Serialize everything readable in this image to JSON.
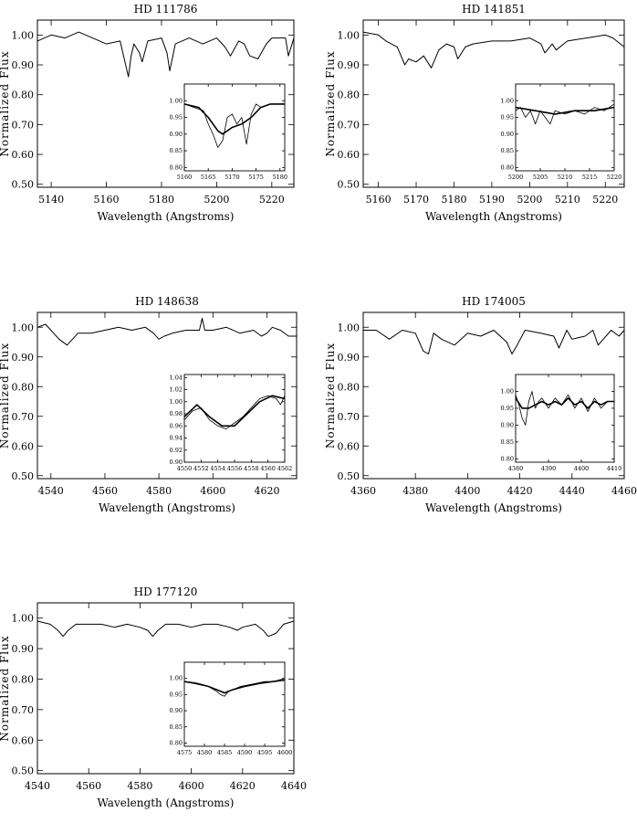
{
  "chart_data": [
    {
      "type": "line",
      "title": "HD 111786",
      "xlabel": "Wavelength (Angstroms)",
      "ylabel": "Normalized Flux",
      "xlim": [
        5135,
        5228
      ],
      "ylim": [
        0.49,
        1.05
      ],
      "xticks": [
        5140,
        5160,
        5180,
        5200,
        5220
      ],
      "yticks": [
        0.5,
        0.6,
        0.7,
        0.8,
        0.9,
        1.0
      ],
      "series": [
        {
          "x": [
            5135,
            5140,
            5145,
            5150,
            5155,
            5160,
            5165,
            5167,
            5168,
            5169,
            5170,
            5172,
            5173,
            5175,
            5180,
            5182,
            5183,
            5185,
            5190,
            5195,
            5200,
            5203,
            5205,
            5208,
            5210,
            5212,
            5215,
            5218,
            5220,
            5225,
            5226,
            5228
          ],
          "y": [
            0.98,
            1.0,
            0.99,
            1.01,
            0.99,
            0.97,
            0.98,
            0.9,
            0.86,
            0.93,
            0.97,
            0.94,
            0.91,
            0.98,
            0.99,
            0.94,
            0.88,
            0.97,
            0.99,
            0.97,
            0.99,
            0.96,
            0.93,
            0.98,
            0.97,
            0.93,
            0.92,
            0.97,
            0.99,
            0.99,
            0.93,
            0.99
          ]
        }
      ],
      "inset": {
        "xlim": [
          5160,
          5181
        ],
        "ylim": [
          0.79,
          1.05
        ],
        "xticks": [
          5160,
          5165,
          5170,
          5175,
          5180
        ],
        "yticks": [
          0.8,
          0.85,
          0.9,
          0.95,
          1.0
        ],
        "series": [
          {
            "x": [
              5160,
              5162,
              5164,
              5165,
              5166,
              5167,
              5168,
              5169,
              5170,
              5171,
              5172,
              5173,
              5174,
              5175,
              5176,
              5178,
              5181
            ],
            "y": [
              0.99,
              0.98,
              0.97,
              0.93,
              0.9,
              0.86,
              0.88,
              0.95,
              0.96,
              0.93,
              0.95,
              0.87,
              0.96,
              0.99,
              0.98,
              0.99,
              0.99
            ]
          },
          {
            "x": [
              5160,
              5163,
              5165,
              5167,
              5168,
              5170,
              5172,
              5174,
              5176,
              5178,
              5181
            ],
            "y": [
              0.99,
              0.98,
              0.95,
              0.91,
              0.9,
              0.92,
              0.93,
              0.95,
              0.98,
              0.99,
              0.99
            ]
          }
        ]
      }
    },
    {
      "type": "line",
      "title": "HD 141851",
      "xlabel": "Wavelength (Angstroms)",
      "ylabel": "Normalized Flux",
      "xlim": [
        5156,
        5225
      ],
      "ylim": [
        0.49,
        1.05
      ],
      "xticks": [
        5160,
        5170,
        5180,
        5190,
        5200,
        5210,
        5220
      ],
      "yticks": [
        0.5,
        0.6,
        0.7,
        0.8,
        0.9,
        1.0
      ],
      "series": [
        {
          "x": [
            5156,
            5160,
            5162,
            5165,
            5167,
            5168,
            5170,
            5172,
            5174,
            5176,
            5178,
            5180,
            5181,
            5183,
            5185,
            5190,
            5195,
            5200,
            5203,
            5204,
            5206,
            5207,
            5210,
            5215,
            5220,
            5222,
            5225
          ],
          "y": [
            1.01,
            1.0,
            0.98,
            0.96,
            0.9,
            0.92,
            0.91,
            0.93,
            0.89,
            0.95,
            0.97,
            0.96,
            0.92,
            0.96,
            0.97,
            0.98,
            0.98,
            0.99,
            0.97,
            0.94,
            0.97,
            0.95,
            0.98,
            0.99,
            1.0,
            0.99,
            0.96
          ]
        }
      ],
      "inset": {
        "xlim": [
          5200,
          5220
        ],
        "ylim": [
          0.79,
          1.05
        ],
        "xticks": [
          5200,
          5205,
          5210,
          5215,
          5220
        ],
        "yticks": [
          0.8,
          0.85,
          0.9,
          0.95,
          1.0
        ],
        "series": [
          {
            "x": [
              5200,
              5201,
              5202,
              5203,
              5204,
              5205,
              5206,
              5207,
              5208,
              5210,
              5212,
              5214,
              5216,
              5218,
              5220
            ],
            "y": [
              0.97,
              0.98,
              0.95,
              0.97,
              0.93,
              0.97,
              0.95,
              0.93,
              0.97,
              0.96,
              0.97,
              0.96,
              0.98,
              0.97,
              0.99
            ]
          },
          {
            "x": [
              5200,
              5204,
              5208,
              5212,
              5216,
              5220
            ],
            "y": [
              0.98,
              0.97,
              0.96,
              0.97,
              0.97,
              0.98
            ]
          }
        ]
      }
    },
    {
      "type": "line",
      "title": "HD 148638",
      "xlabel": "Wavelength (Angstroms)",
      "ylabel": "Normalized Flux",
      "xlim": [
        4535,
        4631
      ],
      "ylim": [
        0.49,
        1.05
      ],
      "xticks": [
        4540,
        4560,
        4580,
        4600,
        4620
      ],
      "yticks": [
        0.5,
        0.6,
        0.7,
        0.8,
        0.9,
        1.0
      ],
      "series": [
        {
          "x": [
            4535,
            4538,
            4540,
            4543,
            4546,
            4548,
            4550,
            4555,
            4560,
            4565,
            4570,
            4575,
            4578,
            4580,
            4582,
            4585,
            4590,
            4595,
            4596,
            4597,
            4600,
            4605,
            4610,
            4615,
            4618,
            4620,
            4622,
            4625,
            4628,
            4631
          ],
          "y": [
            1.0,
            1.01,
            0.99,
            0.96,
            0.94,
            0.96,
            0.98,
            0.98,
            0.99,
            1.0,
            0.99,
            1.0,
            0.98,
            0.96,
            0.97,
            0.98,
            0.99,
            0.99,
            1.03,
            0.99,
            0.99,
            1.0,
            0.98,
            0.99,
            0.97,
            0.98,
            1.0,
            0.99,
            0.97,
            0.97
          ]
        }
      ],
      "inset": {
        "xlim": [
          4550,
          4562
        ],
        "ylim": [
          0.9,
          1.045
        ],
        "xticks": [
          4550,
          4552,
          4554,
          4556,
          4558,
          4560,
          4562
        ],
        "yticks": [
          0.9,
          0.92,
          0.94,
          0.96,
          0.98,
          1.0,
          1.02,
          1.04
        ],
        "series": [
          {
            "x": [
              4550,
              4551,
              4552,
              4553,
              4554,
              4555,
              4556,
              4557,
              4558,
              4559,
              4560,
              4561,
              4561.5,
              4562
            ],
            "y": [
              0.97,
              0.985,
              0.99,
              0.97,
              0.96,
              0.955,
              0.965,
              0.975,
              0.99,
              1.005,
              1.01,
              1.005,
              0.995,
              1.01
            ]
          },
          {
            "x": [
              4550,
              4551.5,
              4553,
              4554.5,
              4556,
              4557.5,
              4559,
              4560.5,
              4562
            ],
            "y": [
              0.975,
              0.995,
              0.975,
              0.96,
              0.96,
              0.98,
              1.0,
              1.01,
              1.005
            ]
          }
        ]
      }
    },
    {
      "type": "line",
      "title": "HD 174005",
      "xlabel": "Wavelength (Angstroms)",
      "ylabel": "Normalized Flux",
      "xlim": [
        4360,
        4460
      ],
      "ylim": [
        0.49,
        1.05
      ],
      "xticks": [
        4360,
        4380,
        4400,
        4420,
        4440,
        4460
      ],
      "yticks": [
        0.5,
        0.6,
        0.7,
        0.8,
        0.9,
        1.0
      ],
      "series": [
        {
          "x": [
            4360,
            4365,
            4370,
            4375,
            4380,
            4383,
            4385,
            4387,
            4390,
            4395,
            4400,
            4405,
            4410,
            4415,
            4417,
            4419,
            4422,
            4428,
            4433,
            4435,
            4438,
            4440,
            4445,
            4448,
            4450,
            4455,
            4458,
            4460
          ],
          "y": [
            0.99,
            0.99,
            0.96,
            0.99,
            0.98,
            0.92,
            0.91,
            0.98,
            0.96,
            0.94,
            0.98,
            0.97,
            0.99,
            0.95,
            0.91,
            0.94,
            0.99,
            0.98,
            0.97,
            0.93,
            0.99,
            0.96,
            0.97,
            0.99,
            0.94,
            0.99,
            0.97,
            0.99
          ]
        }
      ],
      "inset": {
        "xlim": [
          4380,
          4410
        ],
        "ylim": [
          0.79,
          1.05
        ],
        "xticks": [
          4380,
          4390,
          4400,
          4410
        ],
        "yticks": [
          0.8,
          0.85,
          0.9,
          0.95,
          1.0
        ],
        "series": [
          {
            "x": [
              4380,
              4381,
              4382,
              4383,
              4384,
              4385,
              4386,
              4387,
              4388,
              4390,
              4392,
              4394,
              4396,
              4398,
              4400,
              4402,
              4404,
              4406,
              4408,
              4410
            ],
            "y": [
              0.99,
              0.96,
              0.92,
              0.9,
              0.97,
              1.0,
              0.95,
              0.97,
              0.98,
              0.95,
              0.98,
              0.96,
              0.99,
              0.95,
              0.98,
              0.94,
              0.98,
              0.95,
              0.97,
              0.97
            ]
          },
          {
            "x": [
              4380,
              4382,
              4384,
              4386,
              4388,
              4390,
              4392,
              4394,
              4396,
              4398,
              4400,
              4402,
              4404,
              4406,
              4408,
              4410
            ],
            "y": [
              0.98,
              0.95,
              0.95,
              0.96,
              0.97,
              0.96,
              0.97,
              0.96,
              0.98,
              0.96,
              0.97,
              0.95,
              0.97,
              0.96,
              0.97,
              0.97
            ]
          }
        ]
      }
    },
    {
      "type": "line",
      "title": "HD 177120",
      "xlabel": "Wavelength (Angstroms)",
      "ylabel": "Normalized Flux",
      "xlim": [
        4540,
        4640
      ],
      "ylim": [
        0.49,
        1.05
      ],
      "xticks": [
        4540,
        4560,
        4580,
        4600,
        4620,
        4640
      ],
      "yticks": [
        0.5,
        0.6,
        0.7,
        0.8,
        0.9,
        1.0
      ],
      "series": [
        {
          "x": [
            4540,
            4545,
            4548,
            4550,
            4552,
            4555,
            4560,
            4565,
            4570,
            4575,
            4580,
            4583,
            4585,
            4587,
            4590,
            4595,
            4600,
            4605,
            4610,
            4615,
            4618,
            4620,
            4625,
            4628,
            4630,
            4633,
            4636,
            4640
          ],
          "y": [
            0.99,
            0.98,
            0.96,
            0.94,
            0.96,
            0.98,
            0.98,
            0.98,
            0.97,
            0.98,
            0.97,
            0.96,
            0.94,
            0.96,
            0.98,
            0.98,
            0.97,
            0.98,
            0.98,
            0.97,
            0.96,
            0.97,
            0.98,
            0.96,
            0.94,
            0.95,
            0.98,
            0.99
          ]
        }
      ],
      "inset": {
        "xlim": [
          4575,
          4600
        ],
        "ylim": [
          0.79,
          1.05
        ],
        "xticks": [
          4575,
          4580,
          4585,
          4590,
          4595,
          4600
        ],
        "yticks": [
          0.8,
          0.85,
          0.9,
          0.95,
          1.0
        ],
        "series": [
          {
            "x": [
              4575,
              4577,
              4579,
              4581,
              4583,
              4584,
              4585,
              4586,
              4587,
              4589,
              4591,
              4593,
              4595,
              4597,
              4600
            ],
            "y": [
              0.99,
              0.985,
              0.98,
              0.975,
              0.96,
              0.95,
              0.945,
              0.96,
              0.965,
              0.975,
              0.98,
              0.985,
              0.99,
              0.99,
              1.0
            ]
          },
          {
            "x": [
              4575,
              4578,
              4581,
              4584,
              4585,
              4587,
              4590,
              4594,
              4597,
              4600
            ],
            "y": [
              0.99,
              0.985,
              0.975,
              0.96,
              0.955,
              0.965,
              0.975,
              0.985,
              0.99,
              0.995
            ]
          }
        ]
      }
    }
  ]
}
